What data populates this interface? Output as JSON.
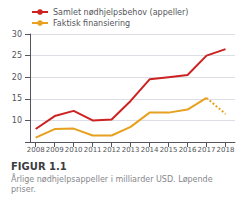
{
  "chart_data": {
    "type": "line",
    "title": "FIGUR 1.1",
    "subtitle": "Årlige nødhjelpsappeller i milliarder USD. Løpende priser.",
    "x": [
      2008,
      2009,
      2010,
      2011,
      2012,
      2013,
      2014,
      2015,
      2016,
      2017,
      2018
    ],
    "xlim": [
      2007.7,
      2018.5
    ],
    "xticks": [
      2008,
      2009,
      2010,
      2011,
      2012,
      2013,
      2014,
      2015,
      2016,
      2017,
      2018
    ],
    "ylim": [
      5,
      30
    ],
    "yticks": [
      10,
      15,
      20,
      25,
      30
    ],
    "grid": true,
    "legend": "top-left",
    "series": [
      {
        "name": "Samlet nødhjelpsbehov (appeller)",
        "color": "#cc2222",
        "line_style": "solid",
        "values": [
          8.0,
          11.0,
          12.2,
          10.0,
          10.2,
          14.5,
          19.5,
          20.0,
          20.5,
          25.0,
          26.5
        ]
      },
      {
        "name": "Faktisk finansiering",
        "color": "#e8a020",
        "line_style": "solid",
        "values": [
          6.0,
          8.0,
          8.1,
          6.5,
          6.5,
          8.5,
          11.8,
          11.8,
          12.5,
          15.2,
          null
        ]
      },
      {
        "name": "Faktisk finansiering",
        "color": "#e8a020",
        "line_style": "dotted",
        "values": [
          null,
          null,
          null,
          null,
          null,
          null,
          null,
          null,
          null,
          15.2,
          11.5
        ]
      }
    ]
  }
}
